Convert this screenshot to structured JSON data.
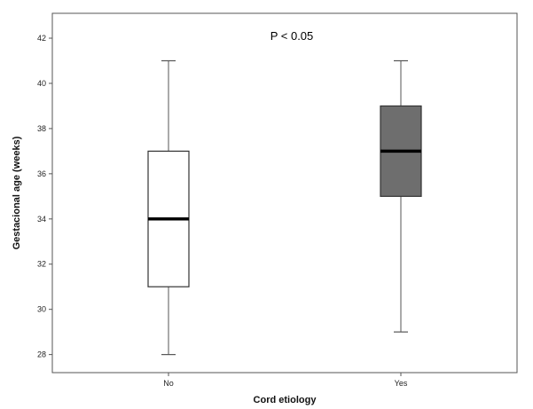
{
  "chart_data": {
    "type": "box",
    "title": "",
    "annotation": "P < 0.05",
    "xlabel": "Cord etiology",
    "ylabel": "Gestacional age (weeks)",
    "ylim": [
      27.2,
      43.1
    ],
    "yticks": [
      28,
      30,
      32,
      34,
      36,
      38,
      40,
      42
    ],
    "categories": [
      "No",
      "Yes"
    ],
    "boxes": [
      {
        "category": "No",
        "min": 28,
        "q1": 31,
        "median": 34,
        "q3": 37,
        "max": 41,
        "fill": "#ffffff"
      },
      {
        "category": "Yes",
        "min": 29,
        "q1": 35,
        "median": 37,
        "q3": 39,
        "max": 41,
        "fill": "#6e6e6e"
      }
    ],
    "grid": false,
    "legend": "none"
  }
}
